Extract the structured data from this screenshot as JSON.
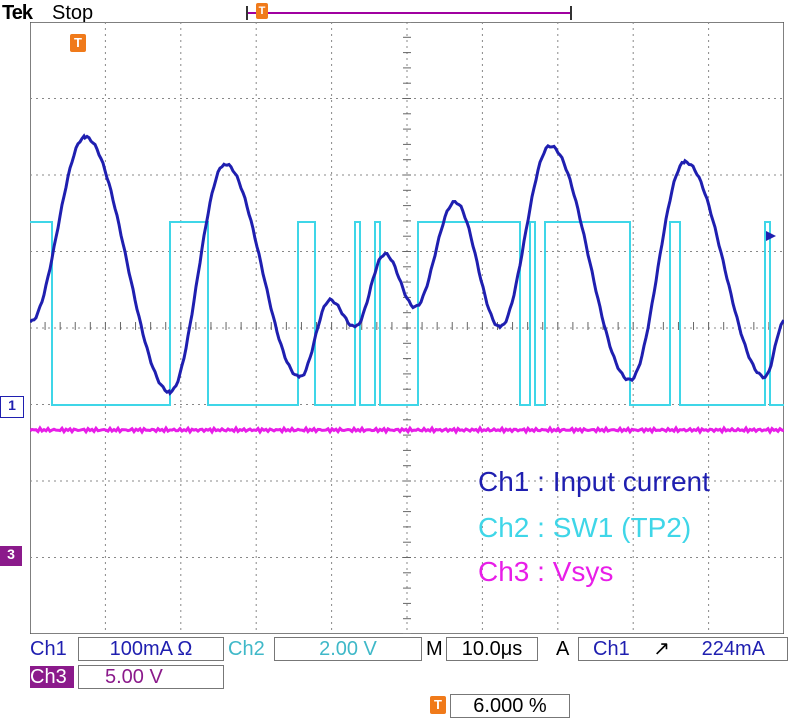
{
  "header": {
    "brand": "Tek",
    "state": "Stop",
    "trigger_marker_label": "T"
  },
  "scope": {
    "trace_colors": {
      "ch1": "#1f1fb0",
      "ch2": "#3fd6e8",
      "ch3": "#e81ee8"
    },
    "ch1_indicator": "1",
    "ch3_indicator": "3"
  },
  "legend": {
    "ch1": "Ch1 : Input current",
    "ch2": "Ch2 : SW1 (TP2)",
    "ch3": "Ch3 : Vsys"
  },
  "settings": {
    "ch1_label": "Ch1",
    "ch1_scale": "100mA Ω",
    "ch2_label": "Ch2",
    "ch2_scale": "2.00 V",
    "ch3_label": "Ch3",
    "ch3_scale": "5.00 V",
    "timebase_prefix": "M",
    "timebase": "10.0μs",
    "acq_mode": "A",
    "trigger_source": "Ch1",
    "trigger_slope": "↗",
    "trigger_level": "224mA",
    "trigger_position": "6.000 %"
  }
}
